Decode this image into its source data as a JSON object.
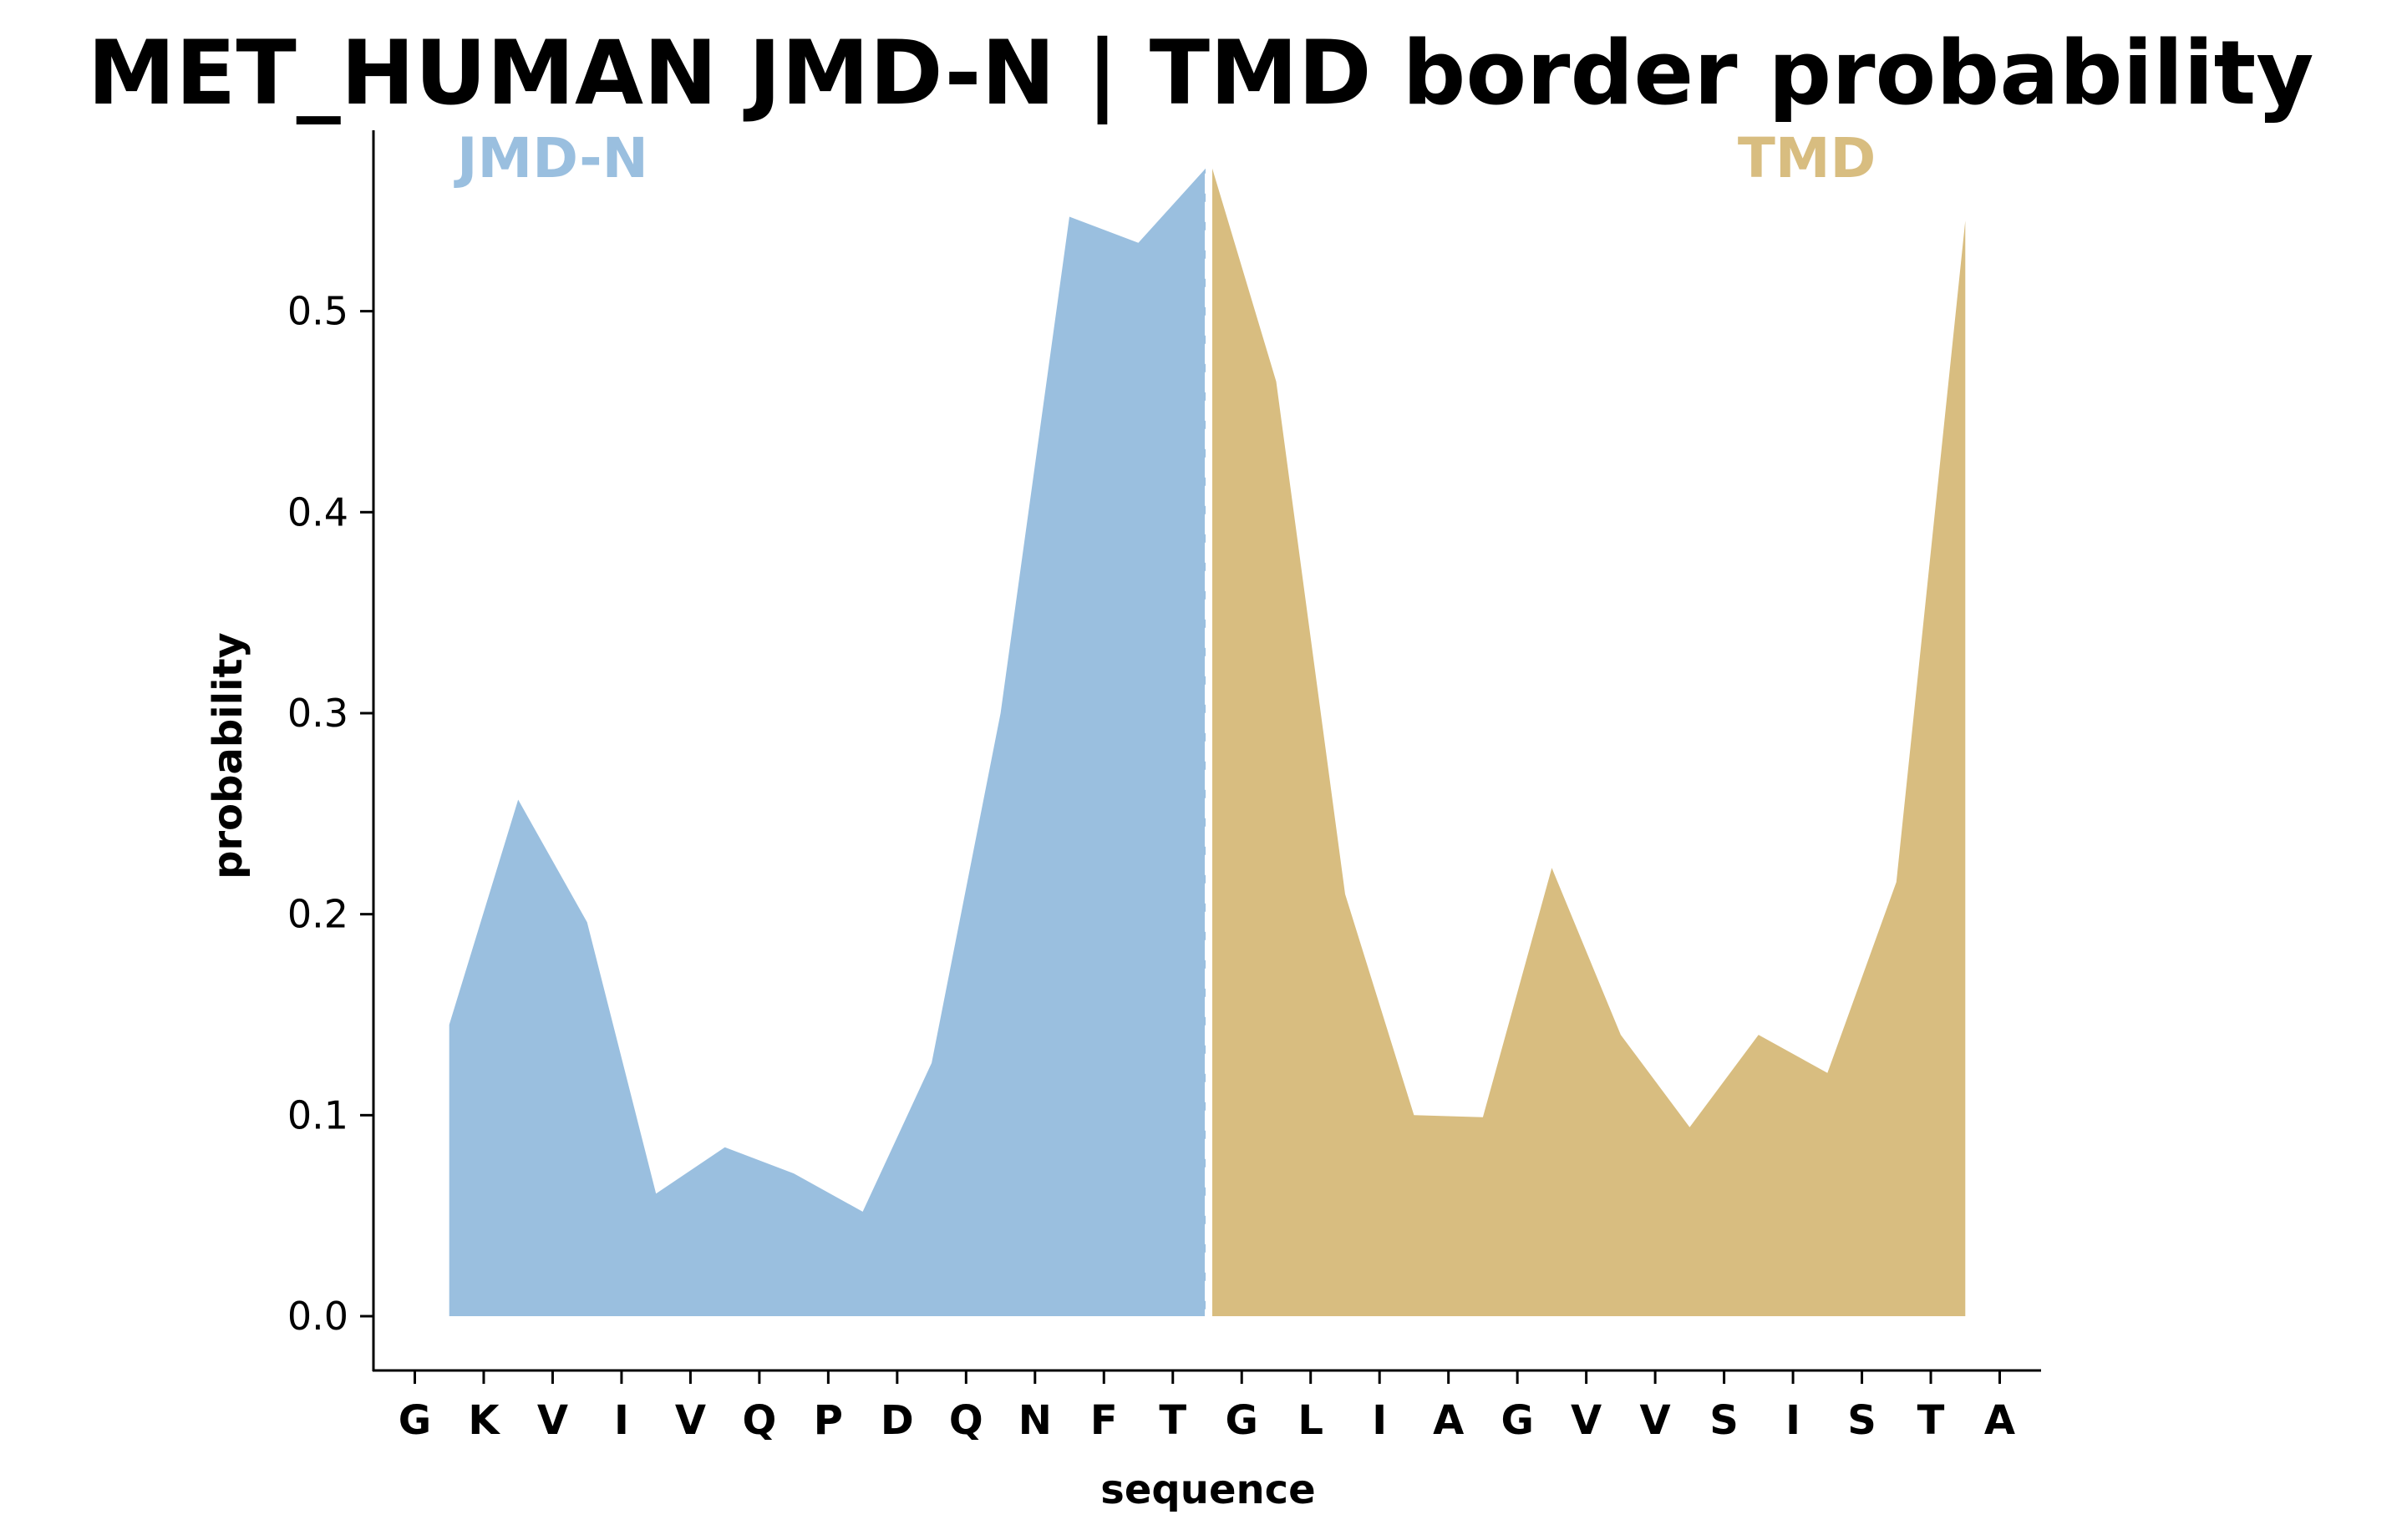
{
  "chart_data": {
    "type": "area",
    "title": "MET_HUMAN JMD-N | TMD border probability",
    "xlabel": "sequence",
    "ylabel": "probability",
    "ylim": [
      -0.027,
      0.59
    ],
    "yticks": [
      "0.0",
      "0.1",
      "0.2",
      "0.3",
      "0.4",
      "0.5"
    ],
    "categories": [
      "G",
      "K",
      "V",
      "I",
      "V",
      "Q",
      "P",
      "D",
      "Q",
      "N",
      "F",
      "T",
      "G",
      "L",
      "I",
      "A",
      "G",
      "V",
      "V",
      "S",
      "I",
      "S",
      "T",
      "A"
    ],
    "x": [
      0.5,
      1.5,
      2.5,
      3.5,
      4.5,
      5.5,
      6.5,
      7.5,
      8.5,
      9.5,
      10.5,
      11.5,
      12.5,
      13.5,
      14.5,
      15.5,
      16.5,
      17.5,
      18.5,
      19.5,
      20.5,
      21.5,
      22.5
    ],
    "values": [
      0.145,
      0.257,
      0.196,
      0.061,
      0.084,
      0.071,
      0.052,
      0.126,
      0.3,
      0.547,
      0.534,
      0.571,
      0.465,
      0.21,
      0.1,
      0.099,
      0.223,
      0.14,
      0.094,
      0.14,
      0.121,
      0.216,
      0.545
    ],
    "border_x": 11.5,
    "grid": false,
    "legend": "none",
    "series": [
      {
        "name": "JMD-N",
        "color": "#9ABFDF"
      },
      {
        "name": "TMD",
        "color": "#D8BD80"
      }
    ],
    "border_line_color": "#ffffff"
  }
}
